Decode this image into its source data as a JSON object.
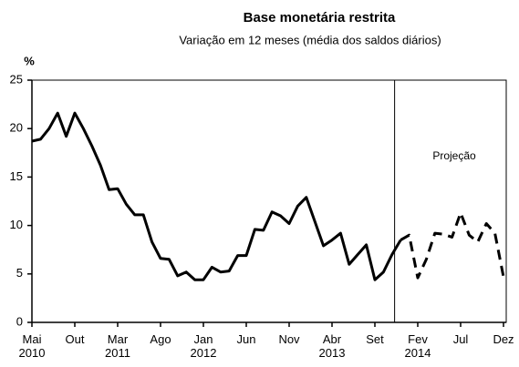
{
  "chart_data": {
    "type": "line",
    "title": "Base monetária restrita",
    "subtitle": "Variação em 12 meses (média dos saldos diários)",
    "y_label": "%",
    "categories": [
      "Mai\n2010",
      null,
      null,
      null,
      null,
      "Out",
      null,
      null,
      null,
      null,
      "Mar\n2011",
      null,
      null,
      null,
      null,
      "Ago",
      null,
      null,
      null,
      null,
      "Jan\n2012",
      null,
      null,
      null,
      null,
      "Jun",
      null,
      null,
      null,
      null,
      "Nov",
      null,
      null,
      null,
      null,
      "Abr\n2013",
      null,
      null,
      null,
      null,
      "Set",
      null,
      null,
      null,
      null,
      "Fev\n2014",
      null,
      null,
      null,
      null,
      "Jul",
      null,
      null,
      null,
      null,
      "Dez"
    ],
    "series": [
      {
        "color": "#000000",
        "dashed": false,
        "values": [
          18.7,
          18.9,
          20,
          21.6,
          19.2,
          21.6,
          20,
          18.2,
          16.2,
          13.7,
          13.8,
          12.2,
          11.1,
          11.1,
          8.3,
          6.6,
          6.5,
          4.8,
          5.2,
          4.4,
          4.4,
          5.7,
          5.2,
          5.3,
          6.9,
          6.9,
          9.6,
          9.5,
          11.4,
          11,
          10.2,
          12,
          12.9,
          10.4,
          7.9,
          8.5,
          9.2,
          6,
          7,
          8,
          4.4,
          5.2,
          7,
          8.5,
          null,
          null,
          null,
          null,
          null,
          null,
          null,
          null,
          null,
          null,
          null,
          null
        ]
      },
      {
        "name": "Projeção",
        "color": "#000000",
        "dashed": true,
        "values": [
          null,
          null,
          null,
          null,
          null,
          null,
          null,
          null,
          null,
          null,
          null,
          null,
          null,
          null,
          null,
          null,
          null,
          null,
          null,
          null,
          null,
          null,
          null,
          null,
          null,
          null,
          null,
          null,
          null,
          null,
          null,
          null,
          null,
          null,
          null,
          null,
          null,
          null,
          null,
          null,
          null,
          null,
          null,
          8.5,
          9,
          4.6,
          6.5,
          9.2,
          9.1,
          8.8,
          11.3,
          9,
          8.3,
          10.2,
          9.2,
          4.7
        ]
      }
    ],
    "ylim": [
      0,
      25
    ],
    "yticks": [
      0,
      5,
      10,
      15,
      20,
      25
    ],
    "grid": false
  }
}
